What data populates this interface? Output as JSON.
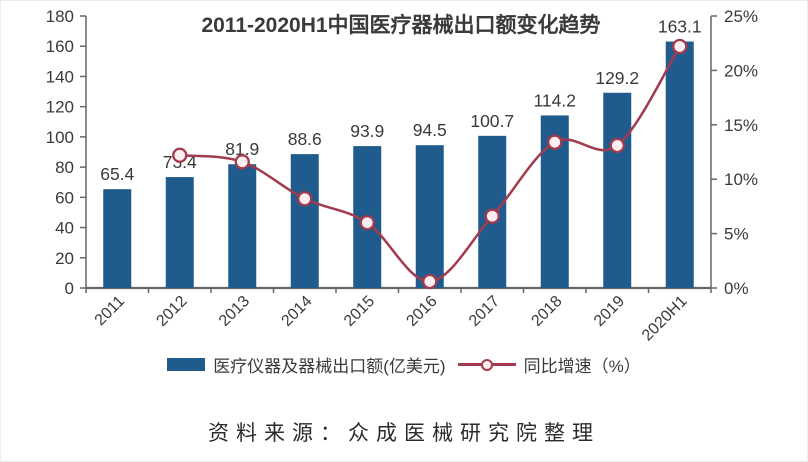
{
  "title": "2011-2020H1中国医疗器械出口额变化趋势",
  "source_note": "资料来源：众成医械研究院整理",
  "colors": {
    "bar": "#1f5b8c",
    "line": "#a23b4e",
    "marker_fill": "#fdeef2",
    "text": "#3a3a3a",
    "axis": "#666666"
  },
  "legend": [
    {
      "kind": "bar",
      "label": "医疗仪器及器械出口额(亿美元)"
    },
    {
      "kind": "line",
      "label": "同比增速（%）"
    }
  ],
  "chart_data": {
    "type": "bar+line",
    "title": "2011-2020H1中国医疗器械出口额变化趋势",
    "categories": [
      "2011",
      "2012",
      "2013",
      "2014",
      "2015",
      "2016",
      "2017",
      "2018",
      "2019",
      "2020H1"
    ],
    "series": [
      {
        "name": "医疗仪器及器械出口额(亿美元)",
        "type": "bar",
        "axis": "left",
        "values": [
          65.4,
          73.4,
          81.9,
          88.6,
          93.9,
          94.5,
          100.7,
          114.2,
          129.2,
          163.1
        ],
        "data_labels": [
          "65.4",
          "73.4",
          "81.9",
          "88.6",
          "93.9",
          "94.5",
          "100.7",
          "114.2",
          "129.2",
          "163.1"
        ]
      },
      {
        "name": "同比增速（%）",
        "type": "line",
        "axis": "right",
        "values": [
          null,
          12.2,
          11.6,
          8.2,
          6.0,
          0.6,
          6.6,
          13.4,
          13.1,
          22.2
        ]
      }
    ],
    "left_axis": {
      "min": 0,
      "max": 180,
      "step": 20,
      "tick_labels": [
        "0",
        "20",
        "40",
        "60",
        "80",
        "100",
        "120",
        "140",
        "160",
        "180"
      ]
    },
    "right_axis": {
      "min": 0,
      "max": 25,
      "step": 5,
      "tick_labels": [
        "0%",
        "5%",
        "10%",
        "15%",
        "20%",
        "25%"
      ]
    },
    "grid": false,
    "legend_position": "bottom",
    "x_label_rotation": -45
  }
}
